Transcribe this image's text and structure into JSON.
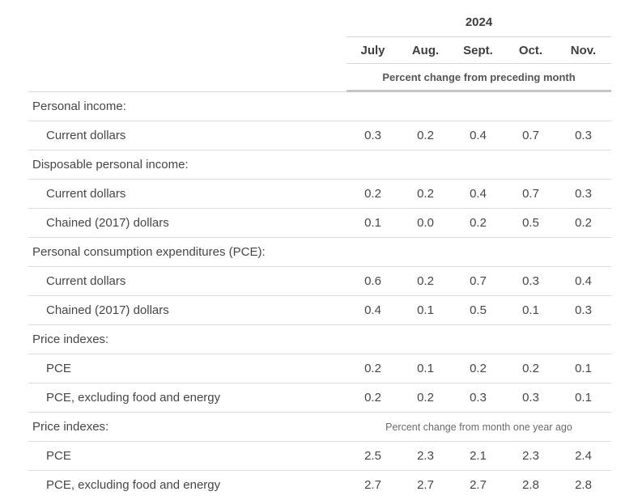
{
  "chart_data": {
    "type": "table",
    "year_header": "2024",
    "columns": [
      "July",
      "Aug.",
      "Sept.",
      "Oct.",
      "Nov."
    ],
    "subheader": "Percent change from preceding month",
    "rows": [
      {
        "label": "Personal income:",
        "type": "section",
        "values": []
      },
      {
        "label": "Current dollars",
        "type": "data",
        "values": [
          "0.3",
          "0.2",
          "0.4",
          "0.7",
          "0.3"
        ]
      },
      {
        "label": "Disposable personal income:",
        "type": "section",
        "values": []
      },
      {
        "label": "Current dollars",
        "type": "data",
        "values": [
          "0.2",
          "0.2",
          "0.4",
          "0.7",
          "0.3"
        ]
      },
      {
        "label": "Chained (2017) dollars",
        "type": "data",
        "values": [
          "0.1",
          "0.0",
          "0.2",
          "0.5",
          "0.2"
        ]
      },
      {
        "label": "Personal consumption expenditures (PCE):",
        "type": "section",
        "values": []
      },
      {
        "label": "Current dollars",
        "type": "data",
        "values": [
          "0.6",
          "0.2",
          "0.7",
          "0.3",
          "0.4"
        ]
      },
      {
        "label": "Chained (2017) dollars",
        "type": "data",
        "values": [
          "0.4",
          "0.1",
          "0.5",
          "0.1",
          "0.3"
        ]
      },
      {
        "label": "Price indexes:",
        "type": "section",
        "values": []
      },
      {
        "label": "PCE",
        "type": "data",
        "values": [
          "0.2",
          "0.1",
          "0.2",
          "0.2",
          "0.1"
        ]
      },
      {
        "label": "PCE, excluding food and energy",
        "type": "data",
        "values": [
          "0.2",
          "0.2",
          "0.3",
          "0.3",
          "0.1"
        ]
      },
      {
        "label": "Price indexes:",
        "type": "section",
        "note": "Percent change from month one year ago",
        "values": []
      },
      {
        "label": "PCE",
        "type": "data",
        "values": [
          "2.5",
          "2.3",
          "2.1",
          "2.3",
          "2.4"
        ]
      },
      {
        "label": "PCE, excluding food and energy",
        "type": "data",
        "values": [
          "2.7",
          "2.7",
          "2.7",
          "2.8",
          "2.8"
        ]
      }
    ]
  },
  "colors": {
    "text": "#464646",
    "header_text": "#3f3f3f",
    "note_text": "#6b6b6b",
    "border_light": "#dcdcdc",
    "border_heavy": "#c6c6c6",
    "background": "#ffffff"
  }
}
